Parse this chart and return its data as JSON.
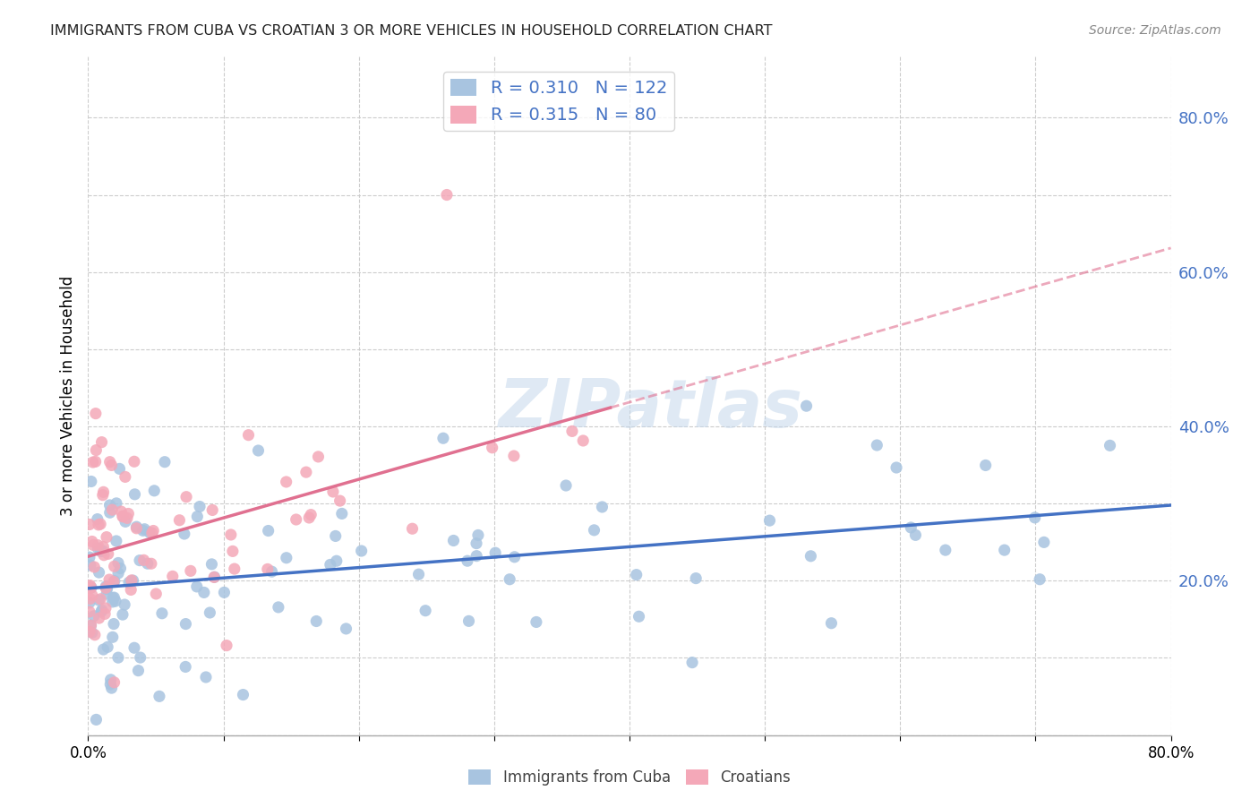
{
  "title": "IMMIGRANTS FROM CUBA VS CROATIAN 3 OR MORE VEHICLES IN HOUSEHOLD CORRELATION CHART",
  "source": "Source: ZipAtlas.com",
  "ylabel_label": "3 or more Vehicles in Household",
  "legend_label1": "Immigrants from Cuba",
  "legend_label2": "Croatians",
  "R1": 0.31,
  "N1": 122,
  "R2": 0.315,
  "N2": 80,
  "color_cuba": "#a8c4e0",
  "color_croatian": "#f4a8b8",
  "color_cuba_line": "#4472c4",
  "color_croatian_line": "#e07090",
  "color_text_blue": "#4472c4",
  "watermark": "ZIPatlas",
  "xmin": 0.0,
  "xmax": 0.8,
  "ymin": 0.0,
  "ymax": 0.88,
  "ytick_grid": [
    0.0,
    0.1,
    0.2,
    0.3,
    0.4,
    0.5,
    0.6,
    0.7,
    0.8
  ],
  "xtick_grid": [
    0.0,
    0.1,
    0.2,
    0.3,
    0.4,
    0.5,
    0.6,
    0.7,
    0.8
  ],
  "yticks_right": [
    0.2,
    0.4,
    0.6,
    0.8
  ],
  "background_color": "#ffffff",
  "grid_color": "#cccccc",
  "cuba_intercept": 0.185,
  "cuba_slope": 0.145,
  "croatian_intercept": 0.235,
  "croatian_slope": 0.38
}
